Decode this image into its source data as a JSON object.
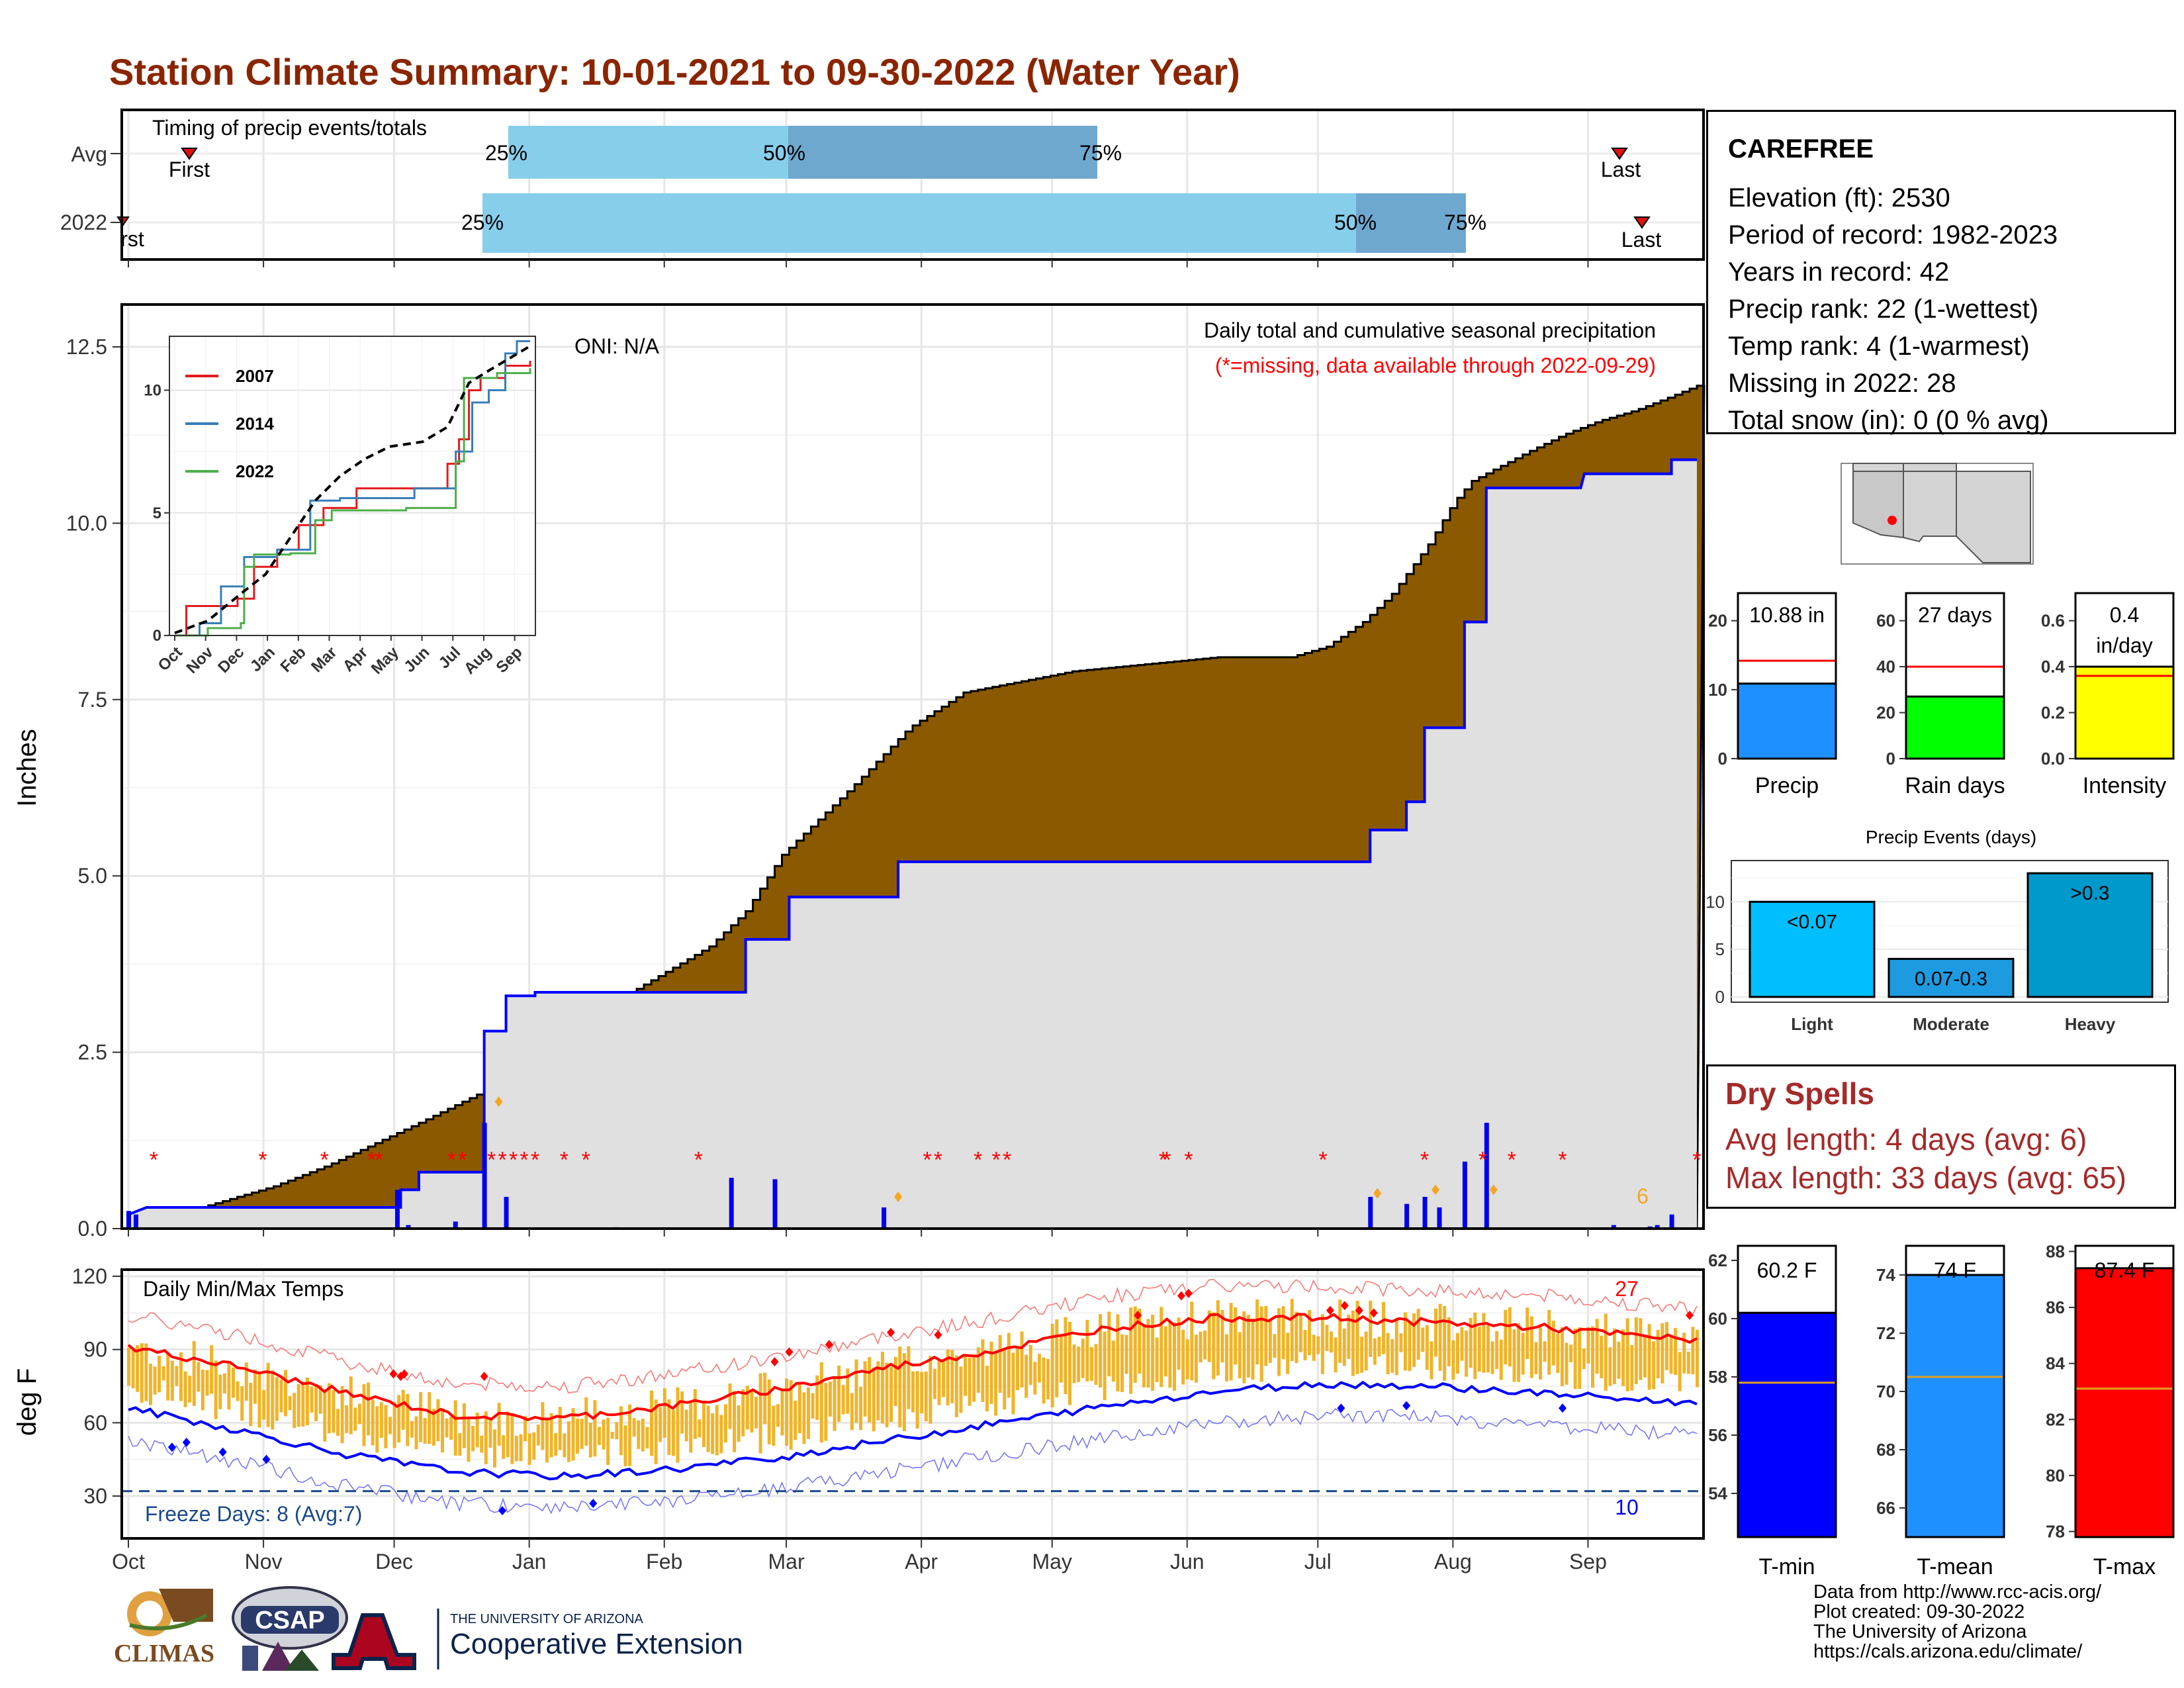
{
  "title": "Station Climate Summary: 10-01-2021 to 09-30-2022 (Water Year)",
  "colors": {
    "title": "#8b2500",
    "brown": "#8b5a00",
    "green": "#1a7a1a",
    "cumulative_line": "#0000ff",
    "gray_fill": "#e0e0e0",
    "light_blue": "#87ceeb",
    "mid_blue": "#6fa8cf",
    "tmax_red": "#ff0000",
    "tmin_blue": "#0000ff",
    "bar_gold": "#f0b429",
    "precip_bar": "#1e90ff",
    "rain_days_bar": "#00ff00",
    "intensity_bar": "#ffff00",
    "event_light": "#00bfff",
    "event_moderate": "#1e9be0",
    "event_heavy": "#0099cc",
    "tmean_bar": "#1e90ff",
    "missing_star": "#ff0000",
    "dry_spells": "#a52a2a"
  },
  "timing_panel": {
    "header": "Timing of precip events/totals",
    "rows": [
      "Avg",
      "2022"
    ],
    "avg": {
      "p25": "25%",
      "p50": "50%",
      "p75": "75%",
      "first": "First",
      "last": "Last"
    },
    "y2022": {
      "p25": "25%",
      "p50": "50%",
      "p75": "75%",
      "first": "rst",
      "last": "Last"
    }
  },
  "precip_panel": {
    "ylabel": "Inches",
    "yticks": [
      "0.0",
      "2.5",
      "5.0",
      "7.5",
      "10.0",
      "12.5"
    ],
    "oni": "ONI: N/A",
    "caption": "Daily total and cumulative seasonal precipitation",
    "missing_note": "(*=missing, data available through 2022-09-29)",
    "corner_count": "6"
  },
  "inset": {
    "legend": [
      "2007",
      "2014",
      "2022"
    ],
    "yticks": [
      "0",
      "5",
      "10"
    ],
    "xticks": [
      "Oct",
      "Nov",
      "Dec",
      "Jan",
      "Feb",
      "Mar",
      "Apr",
      "May",
      "Jun",
      "Jul",
      "Aug",
      "Sep"
    ]
  },
  "temp_panel": {
    "ylabel": "deg F",
    "header": "Daily Min/Max Temps",
    "yticks": [
      "30",
      "60",
      "90",
      "120"
    ],
    "freeze": "Freeze Days: 8 (Avg:7)",
    "max_count": "27",
    "min_count": "10"
  },
  "x_months": [
    "Oct",
    "Nov",
    "Dec",
    "Jan",
    "Feb",
    "Mar",
    "Apr",
    "May",
    "Jun",
    "Jul",
    "Aug",
    "Sep"
  ],
  "station": {
    "name": "CAREFREE",
    "lines": [
      "Elevation (ft): 2530",
      "Period of record: 1982-2023",
      "Years in record: 42",
      "Precip rank: 22 (1-wettest)",
      "Temp rank: 4 (1-warmest)",
      "Missing in 2022: 28",
      "Total snow (in): 0 (0 % avg)"
    ]
  },
  "mini_bars": {
    "precip": {
      "label": "Precip",
      "value_text": "10.88 in",
      "value": 10.88,
      "avg": 14.2,
      "ymax": 24,
      "yticks": [
        "0",
        "10",
        "20"
      ]
    },
    "rain_days": {
      "label": "Rain days",
      "value_text": "27 days",
      "value": 27,
      "avg": 40,
      "ymax": 72,
      "yticks": [
        "0",
        "20",
        "40",
        "60"
      ]
    },
    "intensity": {
      "label": "Intensity",
      "value_text": "0.4 in/day",
      "value_line1": "0.4",
      "value_line2": "in/day",
      "value": 0.4,
      "avg": 0.36,
      "ymax": 0.72,
      "yticks": [
        "0.0",
        "0.2",
        "0.4",
        "0.6"
      ]
    }
  },
  "precip_events": {
    "title": "Precip Events (days)",
    "yticks": [
      "0",
      "5",
      "10"
    ],
    "bars": [
      {
        "category": "Light",
        "label": "<0.07",
        "value": 10
      },
      {
        "category": "Moderate",
        "label": "0.07-0.3",
        "value": 4
      },
      {
        "category": "Heavy",
        "label": ">0.3",
        "value": 13
      }
    ]
  },
  "dry_spells": {
    "title": "Dry Spells",
    "avg_length": "Avg length: 4 days (avg: 6)",
    "max_length": "Max length: 33 days (avg: 65)"
  },
  "temp_bars": {
    "tmin": {
      "label": "T-min",
      "value_text": "60.2 F",
      "value": 60.2,
      "avg": 57.8,
      "ymin": 52.5,
      "ymax": 62.5,
      "yticks": [
        "54",
        "56",
        "58",
        "60",
        "62"
      ]
    },
    "tmean": {
      "label": "T-mean",
      "value_text": "74 F",
      "value": 74,
      "avg": 70.5,
      "ymin": 65,
      "ymax": 75,
      "yticks": [
        "66",
        "68",
        "70",
        "72",
        "74"
      ]
    },
    "tmax": {
      "label": "T-max",
      "value_text": "87.4 F",
      "value": 87.4,
      "avg": 83.1,
      "ymin": 77.8,
      "ymax": 88.2,
      "yticks": [
        "78",
        "80",
        "82",
        "84",
        "86",
        "88"
      ]
    }
  },
  "logos": {
    "climas": "CLIMAS",
    "csap": "CSAP",
    "ua_small": "THE UNIVERSITY OF ARIZONA",
    "ua_big": "Cooperative Extension"
  },
  "footer": [
    "Data from http://www.rcc-acis.org/",
    "Plot created: 09-30-2022",
    "The University of Arizona",
    "https://cals.arizona.edu/climate/"
  ],
  "chart_data": [
    {
      "type": "area",
      "title": "Daily total and cumulative seasonal precipitation",
      "ylabel": "Inches",
      "ylim": [
        0,
        13
      ],
      "x_unit": "day of water year (0 = Oct 1)",
      "series": [
        {
          "name": "average cumulative",
          "points": [
            [
              0,
              0.1
            ],
            [
              20,
              0.3
            ],
            [
              40,
              0.6
            ],
            [
              55,
              0.9
            ],
            [
              80,
              1.5
            ],
            [
              100,
              2.0
            ],
            [
              115,
              2.4
            ],
            [
              125,
              2.7
            ],
            [
              140,
              3.4
            ],
            [
              160,
              4.0
            ],
            [
              170,
              4.5
            ],
            [
              180,
              5.3
            ],
            [
              200,
              6.3
            ],
            [
              215,
              7.1
            ],
            [
              230,
              7.6
            ],
            [
              240,
              7.7
            ],
            [
              260,
              7.9
            ],
            [
              280,
              8.0
            ],
            [
              300,
              8.1
            ],
            [
              320,
              8.1
            ],
            [
              330,
              8.25
            ],
            [
              340,
              8.6
            ],
            [
              348,
              9.0
            ],
            [
              358,
              9.7
            ],
            [
              365,
              10.3
            ],
            [
              370,
              10.6
            ],
            [
              385,
              11.0
            ],
            [
              395,
              11.25
            ],
            [
              405,
              11.45
            ],
            [
              415,
              11.6
            ],
            [
              425,
              11.8
            ],
            [
              432,
              11.95
            ]
          ]
        },
        {
          "name": "2022 cumulative",
          "points": [
            [
              0,
              0.2
            ],
            [
              5,
              0.3
            ],
            [
              75,
              0.3
            ],
            [
              75,
              0.55
            ],
            [
              80,
              0.55
            ],
            [
              80,
              0.8
            ],
            [
              98,
              0.8
            ],
            [
              98,
              2.8
            ],
            [
              104,
              2.8
            ],
            [
              104,
              3.3
            ],
            [
              112,
              3.3
            ],
            [
              112,
              3.35
            ],
            [
              170,
              3.35
            ],
            [
              170,
              4.1
            ],
            [
              182,
              4.1
            ],
            [
              182,
              4.7
            ],
            [
              212,
              4.7
            ],
            [
              212,
              5.2
            ],
            [
              342,
              5.2
            ],
            [
              342,
              5.65
            ],
            [
              352,
              5.65
            ],
            [
              352,
              6.05
            ],
            [
              357,
              6.05
            ],
            [
              357,
              7.1
            ],
            [
              368,
              7.1
            ],
            [
              368,
              8.6
            ],
            [
              374,
              8.6
            ],
            [
              374,
              10.5
            ],
            [
              400,
              10.5
            ],
            [
              401,
              10.7
            ],
            [
              425,
              10.7
            ],
            [
              425,
              10.9
            ],
            [
              432,
              10.9
            ]
          ]
        }
      ],
      "daily_totals": [
        [
          0,
          0.25
        ],
        [
          2,
          0.2
        ],
        [
          74,
          0.55
        ],
        [
          77,
          0.05
        ],
        [
          90,
          0.1
        ],
        [
          98,
          1.5
        ],
        [
          104,
          0.45
        ],
        [
          134,
          0.02
        ],
        [
          166,
          0.72
        ],
        [
          178,
          0.7
        ],
        [
          208,
          0.3
        ],
        [
          342,
          0.45
        ],
        [
          352,
          0.35
        ],
        [
          357,
          0.45
        ],
        [
          361,
          0.3
        ],
        [
          368,
          0.95
        ],
        [
          374,
          1.5
        ],
        [
          409,
          0.05
        ],
        [
          419,
          0.03
        ],
        [
          421,
          0.05
        ],
        [
          425,
          0.2
        ]
      ]
    },
    {
      "type": "line",
      "title": "Daily Min/Max Temps",
      "ylabel": "deg F",
      "ylim": [
        15,
        125
      ],
      "x_unit": "day of water year (0 = Oct 1)",
      "series": [
        {
          "name": "avg max",
          "points": [
            [
              0,
              91
            ],
            [
              30,
              83
            ],
            [
              60,
              72
            ],
            [
              90,
              63
            ],
            [
              120,
              62
            ],
            [
              150,
              67
            ],
            [
              180,
              74
            ],
            [
              210,
              83
            ],
            [
              240,
              90
            ],
            [
              270,
              99
            ],
            [
              300,
              103
            ],
            [
              330,
              103
            ],
            [
              360,
              101
            ],
            [
              390,
              99
            ],
            [
              420,
              95
            ],
            [
              432,
              94
            ]
          ]
        },
        {
          "name": "avg min",
          "points": [
            [
              0,
              66
            ],
            [
              30,
              57
            ],
            [
              60,
              47
            ],
            [
              90,
              40
            ],
            [
              120,
              38
            ],
            [
              150,
              41
            ],
            [
              180,
              46
            ],
            [
              210,
              53
            ],
            [
              240,
              60
            ],
            [
              270,
              67
            ],
            [
              300,
              73
            ],
            [
              330,
              76
            ],
            [
              360,
              75
            ],
            [
              390,
              72
            ],
            [
              420,
              69
            ],
            [
              432,
              68
            ]
          ]
        }
      ],
      "freeze_line": 32
    },
    {
      "type": "line",
      "title": "inset cumulative precipitation",
      "ylim": [
        0,
        13
      ],
      "series": [
        {
          "name": "2007",
          "points": [
            [
              0,
              0
            ],
            [
              7,
              1.2
            ],
            [
              20,
              1.2
            ],
            [
              38,
              1.5
            ],
            [
              48,
              2.8
            ],
            [
              62,
              3.5
            ],
            [
              75,
              4.5
            ],
            [
              90,
              5.2
            ],
            [
              110,
              6.0
            ],
            [
              125,
              6.0
            ],
            [
              160,
              6.0
            ],
            [
              165,
              7.0
            ],
            [
              172,
              8.0
            ],
            [
              178,
              10.0
            ],
            [
              185,
              10.5
            ],
            [
              200,
              11.0
            ],
            [
              215,
              11.2
            ]
          ]
        },
        {
          "name": "2014",
          "points": [
            [
              0,
              0
            ],
            [
              15,
              0.5
            ],
            [
              28,
              2.0
            ],
            [
              42,
              3.2
            ],
            [
              62,
              3.5
            ],
            [
              82,
              5.5
            ],
            [
              100,
              5.6
            ],
            [
              145,
              6.0
            ],
            [
              160,
              6.0
            ],
            [
              170,
              7.5
            ],
            [
              180,
              9.5
            ],
            [
              190,
              10.0
            ],
            [
              200,
              11.5
            ],
            [
              207,
              12.0
            ],
            [
              215,
              12.0
            ]
          ]
        },
        {
          "name": "2022",
          "points": [
            [
              0,
              0
            ],
            [
              20,
              0.3
            ],
            [
              40,
              0.5
            ],
            [
              42,
              2.8
            ],
            [
              48,
              3.3
            ],
            [
              60,
              3.3
            ],
            [
              70,
              3.35
            ],
            [
              85,
              4.7
            ],
            [
              95,
              5.1
            ],
            [
              140,
              5.2
            ],
            [
              162,
              5.2
            ],
            [
              170,
              7.1
            ],
            [
              175,
              10.5
            ],
            [
              195,
              10.7
            ],
            [
              215,
              10.9
            ]
          ]
        },
        {
          "name": "avg",
          "points": [
            [
              0,
              0.1
            ],
            [
              20,
              0.6
            ],
            [
              40,
              1.7
            ],
            [
              55,
              2.5
            ],
            [
              70,
              4.0
            ],
            [
              85,
              5.5
            ],
            [
              100,
              6.5
            ],
            [
              115,
              7.2
            ],
            [
              130,
              7.7
            ],
            [
              150,
              7.9
            ],
            [
              165,
              8.5
            ],
            [
              178,
              10.3
            ],
            [
              190,
              10.8
            ],
            [
              200,
              11.2
            ],
            [
              215,
              11.8
            ]
          ]
        }
      ]
    },
    {
      "type": "bar",
      "title": "Precip Events (days)",
      "categories": [
        "Light",
        "Moderate",
        "Heavy"
      ],
      "values": [
        10,
        4,
        13
      ]
    }
  ]
}
